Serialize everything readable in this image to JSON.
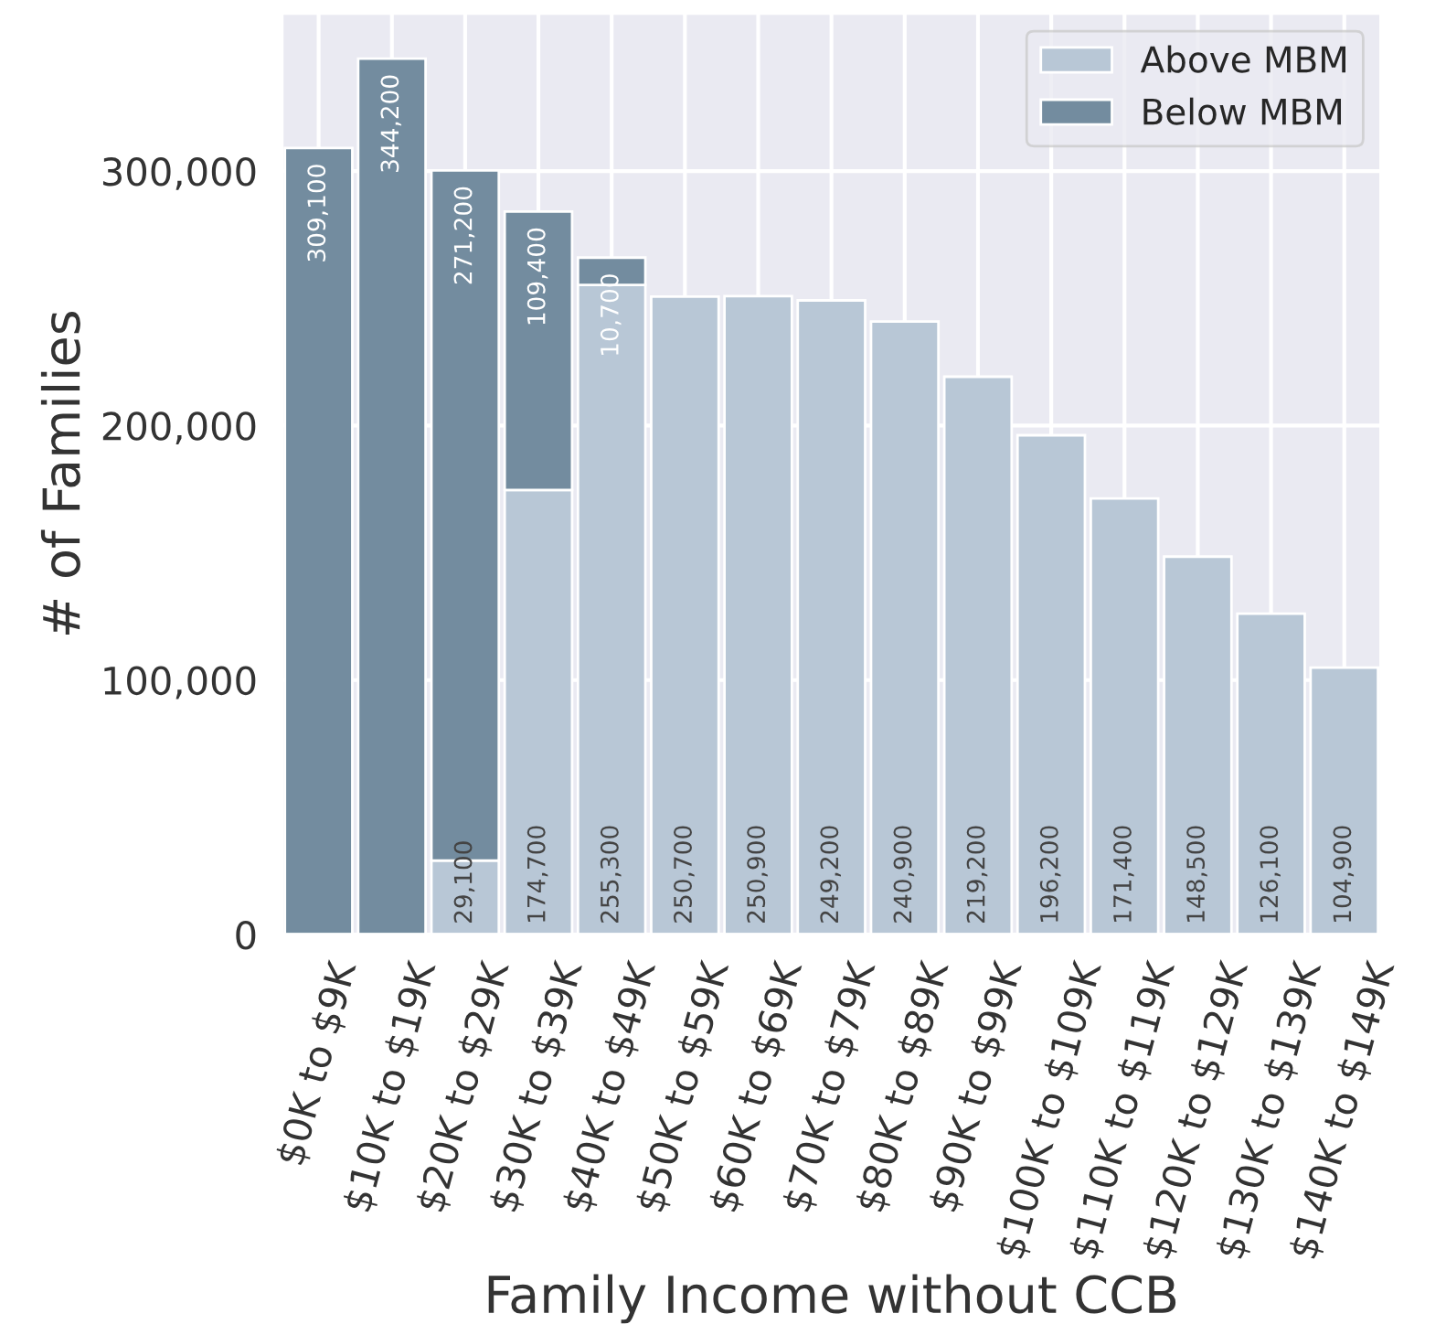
{
  "chart_data": {
    "type": "bar",
    "stacked": true,
    "xlabel": "Family Income without CCB",
    "ylabel": "# of Families",
    "categories": [
      "$0K to $9K",
      "$10K to $19K",
      "$20K to $29K",
      "$30K to $39K",
      "$40K to $49K",
      "$50K to $59K",
      "$60K to $69K",
      "$70K to $79K",
      "$80K to $89K",
      "$90K to $99K",
      "$100K to $109K",
      "$110K to $119K",
      "$120K to $129K",
      "$130K to $139K",
      "$140K to $149K"
    ],
    "series": [
      {
        "name": "Above MBM",
        "color": "#b8c7d6",
        "values": [
          null,
          null,
          29100,
          174700,
          255300,
          250700,
          250900,
          249200,
          240900,
          219200,
          196200,
          171400,
          148500,
          126100,
          104900
        ],
        "value_labels": [
          null,
          null,
          "29,100",
          "174,700",
          "255,300",
          "250,700",
          "250,900",
          "249,200",
          "240,900",
          "219,200",
          "196,200",
          "171,400",
          "148,500",
          "126,100",
          "104,900"
        ]
      },
      {
        "name": "Below MBM",
        "color": "#738c9f",
        "values": [
          309100,
          344200,
          271200,
          109400,
          10700,
          null,
          null,
          null,
          null,
          null,
          null,
          null,
          null,
          null,
          null
        ],
        "value_labels": [
          "309,100",
          "344,200",
          "271,200",
          "109,400",
          "10,700",
          null,
          null,
          null,
          null,
          null,
          null,
          null,
          null,
          null,
          null
        ]
      }
    ],
    "ylim": [
      0,
      362000
    ],
    "yticks": [
      {
        "value": 0,
        "label": "0"
      },
      {
        "value": 100000,
        "label": "100,000"
      },
      {
        "value": 200000,
        "label": "200,000"
      },
      {
        "value": 300000,
        "label": "300,000"
      }
    ],
    "grid": true,
    "legend": "top right"
  }
}
